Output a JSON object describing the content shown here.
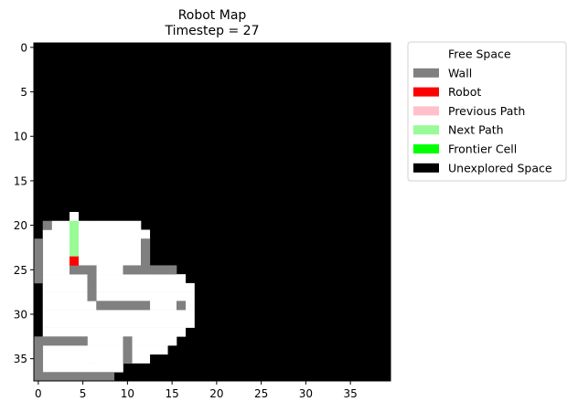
{
  "chart_data": {
    "type": "heatmap",
    "title": "Robot Map",
    "subtitle": "Timestep = 27",
    "grid": false,
    "legend_position": "outside-right",
    "grid_size": [
      40,
      38
    ],
    "xlim": [
      -0.5,
      39.5
    ],
    "ylim": [
      37.5,
      -0.5
    ],
    "xticks": [
      "0",
      "5",
      "10",
      "15",
      "20",
      "25",
      "30",
      "35"
    ],
    "yticks": [
      "0",
      "5",
      "10",
      "15",
      "20",
      "25",
      "30",
      "35"
    ],
    "legend": [
      {
        "key": "free",
        "label": "Free Space",
        "color": "#ffffff"
      },
      {
        "key": "wall",
        "label": "Wall",
        "color": "#808080"
      },
      {
        "key": "robot",
        "label": "Robot",
        "color": "#ff0000"
      },
      {
        "key": "prev",
        "label": "Previous Path",
        "color": "#ffc0cb"
      },
      {
        "key": "next",
        "label": "Next Path",
        "color": "#98fb98"
      },
      {
        "key": "frontier",
        "label": "Frontier Cell",
        "color": "#00ff00"
      },
      {
        "key": "unexplored",
        "label": "Unexplored Space",
        "color": "#000000"
      }
    ],
    "background": "unexplored",
    "cells": {
      "free": [
        [
          4,
          19
        ],
        [
          4,
          20
        ],
        [
          4,
          21
        ],
        [
          4,
          22
        ],
        [
          4,
          23
        ],
        [
          4,
          24
        ],
        [
          4,
          25
        ],
        [
          4,
          26
        ],
        [
          4,
          27
        ],
        [
          4,
          28
        ],
        [
          4,
          29
        ],
        [
          4,
          30
        ],
        [
          4,
          31
        ],
        [
          4,
          32
        ],
        [
          4,
          33
        ],
        [
          4,
          34
        ],
        [
          4,
          35
        ],
        [
          4,
          36
        ],
        [
          2,
          20
        ],
        [
          2,
          21
        ],
        [
          2,
          22
        ],
        [
          2,
          23
        ],
        [
          2,
          24
        ],
        [
          2,
          25
        ],
        [
          2,
          26
        ],
        [
          2,
          27
        ],
        [
          2,
          28
        ],
        [
          2,
          29
        ],
        [
          2,
          30
        ],
        [
          2,
          31
        ],
        [
          2,
          32
        ],
        [
          2,
          33
        ],
        [
          2,
          34
        ],
        [
          2,
          35
        ],
        [
          2,
          36
        ],
        [
          3,
          20
        ],
        [
          3,
          21
        ],
        [
          3,
          22
        ],
        [
          3,
          23
        ],
        [
          3,
          24
        ],
        [
          3,
          25
        ],
        [
          3,
          26
        ],
        [
          3,
          27
        ],
        [
          3,
          28
        ],
        [
          3,
          29
        ],
        [
          3,
          30
        ],
        [
          3,
          31
        ],
        [
          3,
          32
        ],
        [
          3,
          33
        ],
        [
          3,
          34
        ],
        [
          3,
          35
        ],
        [
          3,
          36
        ],
        [
          5,
          20
        ],
        [
          5,
          21
        ],
        [
          5,
          22
        ],
        [
          5,
          23
        ],
        [
          5,
          24
        ],
        [
          5,
          25
        ],
        [
          5,
          26
        ],
        [
          5,
          27
        ],
        [
          5,
          28
        ],
        [
          5,
          29
        ],
        [
          5,
          30
        ],
        [
          5,
          31
        ],
        [
          5,
          32
        ],
        [
          5,
          33
        ],
        [
          5,
          34
        ],
        [
          5,
          35
        ],
        [
          5,
          36
        ],
        [
          6,
          20
        ],
        [
          6,
          21
        ],
        [
          6,
          22
        ],
        [
          6,
          23
        ],
        [
          6,
          24
        ],
        [
          6,
          25
        ],
        [
          6,
          26
        ],
        [
          6,
          27
        ],
        [
          6,
          28
        ],
        [
          6,
          29
        ],
        [
          6,
          30
        ],
        [
          6,
          31
        ],
        [
          6,
          32
        ],
        [
          6,
          33
        ],
        [
          6,
          34
        ],
        [
          6,
          35
        ],
        [
          6,
          36
        ],
        [
          7,
          20
        ],
        [
          7,
          21
        ],
        [
          7,
          22
        ],
        [
          7,
          23
        ],
        [
          7,
          24
        ],
        [
          7,
          25
        ],
        [
          7,
          26
        ],
        [
          7,
          27
        ],
        [
          7,
          28
        ],
        [
          7,
          29
        ],
        [
          7,
          30
        ],
        [
          7,
          31
        ],
        [
          7,
          32
        ],
        [
          7,
          33
        ],
        [
          7,
          34
        ],
        [
          7,
          35
        ],
        [
          7,
          36
        ],
        [
          8,
          20
        ],
        [
          8,
          21
        ],
        [
          8,
          22
        ],
        [
          8,
          23
        ],
        [
          8,
          24
        ],
        [
          8,
          25
        ],
        [
          8,
          26
        ],
        [
          8,
          27
        ],
        [
          8,
          28
        ],
        [
          8,
          29
        ],
        [
          8,
          30
        ],
        [
          8,
          31
        ],
        [
          8,
          32
        ],
        [
          8,
          33
        ],
        [
          8,
          34
        ],
        [
          8,
          35
        ],
        [
          8,
          36
        ],
        [
          9,
          20
        ],
        [
          9,
          21
        ],
        [
          9,
          22
        ],
        [
          9,
          23
        ],
        [
          9,
          24
        ],
        [
          9,
          25
        ],
        [
          9,
          26
        ],
        [
          9,
          27
        ],
        [
          9,
          28
        ],
        [
          9,
          29
        ],
        [
          9,
          30
        ],
        [
          9,
          31
        ],
        [
          9,
          32
        ],
        [
          9,
          33
        ],
        [
          9,
          34
        ],
        [
          9,
          35
        ],
        [
          9,
          36
        ],
        [
          10,
          20
        ],
        [
          10,
          21
        ],
        [
          10,
          22
        ],
        [
          10,
          23
        ],
        [
          10,
          24
        ],
        [
          10,
          25
        ],
        [
          10,
          26
        ],
        [
          10,
          27
        ],
        [
          10,
          28
        ],
        [
          10,
          29
        ],
        [
          10,
          30
        ],
        [
          10,
          31
        ],
        [
          10,
          32
        ],
        [
          10,
          33
        ],
        [
          10,
          34
        ],
        [
          10,
          35
        ],
        [
          11,
          20
        ],
        [
          11,
          21
        ],
        [
          11,
          22
        ],
        [
          11,
          23
        ],
        [
          11,
          24
        ],
        [
          11,
          25
        ],
        [
          11,
          26
        ],
        [
          11,
          27
        ],
        [
          11,
          28
        ],
        [
          11,
          29
        ],
        [
          11,
          30
        ],
        [
          11,
          31
        ],
        [
          11,
          32
        ],
        [
          11,
          33
        ],
        [
          11,
          34
        ],
        [
          11,
          35
        ],
        [
          1,
          21
        ],
        [
          1,
          22
        ],
        [
          1,
          23
        ],
        [
          1,
          24
        ],
        [
          1,
          25
        ],
        [
          1,
          26
        ],
        [
          1,
          27
        ],
        [
          1,
          28
        ],
        [
          1,
          29
        ],
        [
          1,
          30
        ],
        [
          1,
          31
        ],
        [
          1,
          32
        ],
        [
          1,
          33
        ],
        [
          1,
          34
        ],
        [
          1,
          35
        ],
        [
          1,
          36
        ],
        [
          12,
          21
        ],
        [
          12,
          22
        ],
        [
          12,
          23
        ],
        [
          12,
          24
        ],
        [
          12,
          25
        ],
        [
          12,
          26
        ],
        [
          12,
          27
        ],
        [
          12,
          28
        ],
        [
          12,
          29
        ],
        [
          12,
          30
        ],
        [
          12,
          31
        ],
        [
          12,
          32
        ],
        [
          12,
          33
        ],
        [
          12,
          34
        ],
        [
          12,
          35
        ],
        [
          13,
          26
        ],
        [
          13,
          27
        ],
        [
          13,
          28
        ],
        [
          13,
          29
        ],
        [
          13,
          30
        ],
        [
          13,
          31
        ],
        [
          13,
          32
        ],
        [
          13,
          33
        ],
        [
          13,
          34
        ],
        [
          14,
          26
        ],
        [
          14,
          27
        ],
        [
          14,
          28
        ],
        [
          14,
          29
        ],
        [
          14,
          30
        ],
        [
          14,
          31
        ],
        [
          14,
          32
        ],
        [
          14,
          33
        ],
        [
          14,
          34
        ],
        [
          15,
          26
        ],
        [
          15,
          27
        ],
        [
          15,
          28
        ],
        [
          15,
          29
        ],
        [
          15,
          30
        ],
        [
          15,
          31
        ],
        [
          15,
          32
        ],
        [
          15,
          33
        ],
        [
          16,
          26
        ],
        [
          16,
          27
        ],
        [
          16,
          28
        ],
        [
          16,
          29
        ],
        [
          16,
          30
        ],
        [
          16,
          31
        ],
        [
          16,
          32
        ],
        [
          17,
          27
        ],
        [
          17,
          28
        ],
        [
          17,
          29
        ],
        [
          17,
          30
        ],
        [
          17,
          31
        ]
      ],
      "wall": [
        [
          0,
          22
        ],
        [
          0,
          23
        ],
        [
          0,
          24
        ],
        [
          0,
          25
        ],
        [
          0,
          26
        ],
        [
          0,
          33
        ],
        [
          0,
          34
        ],
        [
          0,
          35
        ],
        [
          0,
          36
        ],
        [
          0,
          37
        ],
        [
          1,
          20
        ],
        [
          1,
          33
        ],
        [
          1,
          37
        ],
        [
          2,
          33
        ],
        [
          2,
          37
        ],
        [
          3,
          33
        ],
        [
          3,
          37
        ],
        [
          4,
          33
        ],
        [
          4,
          37
        ],
        [
          5,
          37
        ],
        [
          6,
          37
        ],
        [
          7,
          37
        ],
        [
          8,
          37
        ],
        [
          5,
          33
        ],
        [
          4,
          25
        ],
        [
          5,
          25
        ],
        [
          6,
          25
        ],
        [
          6,
          26
        ],
        [
          6,
          27
        ],
        [
          6,
          28
        ],
        [
          7,
          29
        ],
        [
          8,
          29
        ],
        [
          9,
          29
        ],
        [
          10,
          29
        ],
        [
          11,
          29
        ],
        [
          12,
          29
        ],
        [
          10,
          25
        ],
        [
          11,
          25
        ],
        [
          12,
          25
        ],
        [
          13,
          25
        ],
        [
          14,
          25
        ],
        [
          15,
          25
        ],
        [
          12,
          22
        ],
        [
          12,
          23
        ],
        [
          12,
          24
        ],
        [
          10,
          33
        ],
        [
          10,
          34
        ],
        [
          10,
          35
        ],
        [
          16,
          29
        ]
      ],
      "robot": [
        [
          4,
          24
        ]
      ],
      "prev": [],
      "next": [
        [
          4,
          20
        ],
        [
          4,
          21
        ],
        [
          4,
          22
        ],
        [
          4,
          23
        ]
      ],
      "frontier": []
    }
  }
}
